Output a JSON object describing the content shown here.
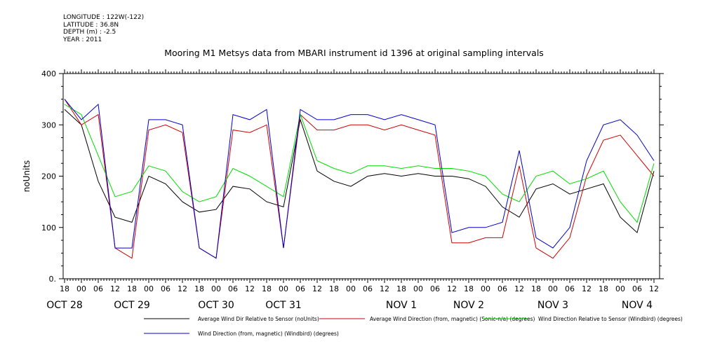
{
  "header": {
    "lines": [
      "LONGITUDE : 122W(-122)",
      "LATITUDE : 36.8N",
      "DEPTH (m) : -2.5",
      "YEAR : 2011"
    ]
  },
  "chart_data": {
    "type": "line",
    "title": "Mooring M1 Metsys data from MBARI instrument id 1396 at original sampling intervals",
    "ylabel": "noUnits",
    "ylim": [
      0,
      400
    ],
    "y_ticks": [
      "0.",
      "100",
      "200",
      "300",
      "400"
    ],
    "x_ticks_hours": [
      "18",
      "00",
      "06",
      "12",
      "18",
      "00",
      "06",
      "12",
      "18",
      "00",
      "06",
      "12",
      "18",
      "00",
      "06",
      "12",
      "18",
      "00",
      "06",
      "12",
      "18",
      "00",
      "06",
      "12",
      "18",
      "00",
      "06",
      "12",
      "18",
      "00",
      "06",
      "12",
      "18",
      "00",
      "06",
      "12"
    ],
    "x_dates": [
      "OCT 28",
      "OCT 29",
      "OCT 30",
      "OCT 31",
      "NOV  1",
      "NOV  2",
      "NOV  3",
      "NOV  4"
    ],
    "x": [
      18,
      24,
      30,
      36,
      42,
      48,
      54,
      60,
      66,
      72,
      78,
      84,
      90,
      96,
      102,
      108,
      114,
      120,
      126,
      132,
      138,
      144,
      150,
      156,
      162,
      168,
      174,
      180,
      186,
      192,
      198,
      204,
      210,
      216,
      222,
      228
    ],
    "series": [
      {
        "name": "Average Wind Dir Relative to Sensor (noUnits)",
        "color": "#000000",
        "values": [
          330,
          300,
          190,
          120,
          110,
          200,
          185,
          150,
          130,
          135,
          180,
          175,
          150,
          140,
          310,
          210,
          190,
          180,
          200,
          205,
          200,
          205,
          200,
          200,
          195,
          180,
          140,
          120,
          175,
          185,
          165,
          175,
          185,
          120,
          90,
          210
        ]
      },
      {
        "name": "Average Wind Direction (from, magnetic) (Sonic-n/a) (degrees)",
        "color": "#d00000",
        "values": [
          350,
          300,
          320,
          60,
          40,
          290,
          300,
          285,
          60,
          40,
          290,
          285,
          300,
          60,
          320,
          290,
          290,
          300,
          300,
          290,
          300,
          290,
          280,
          70,
          70,
          80,
          80,
          220,
          60,
          40,
          80,
          200,
          270,
          280,
          240,
          200
        ]
      },
      {
        "name": "Wind Direction Relative to Sensor (Windbird) (degrees)",
        "color": "#00dd00",
        "values": [
          340,
          320,
          240,
          160,
          170,
          220,
          210,
          170,
          150,
          160,
          215,
          200,
          180,
          160,
          320,
          230,
          215,
          205,
          220,
          220,
          215,
          220,
          215,
          215,
          210,
          200,
          165,
          150,
          200,
          210,
          185,
          195,
          210,
          150,
          110,
          225
        ]
      },
      {
        "name": "Wind Direction (from, magnetic) (Windbird) (degrees)",
        "color": "#0000cc",
        "values": [
          350,
          310,
          340,
          60,
          60,
          310,
          310,
          300,
          60,
          40,
          320,
          310,
          330,
          60,
          330,
          310,
          310,
          320,
          320,
          310,
          320,
          310,
          300,
          90,
          100,
          100,
          110,
          250,
          80,
          60,
          100,
          230,
          300,
          310,
          280,
          230
        ]
      }
    ],
    "legend_placement": "bottom",
    "grid": false
  }
}
